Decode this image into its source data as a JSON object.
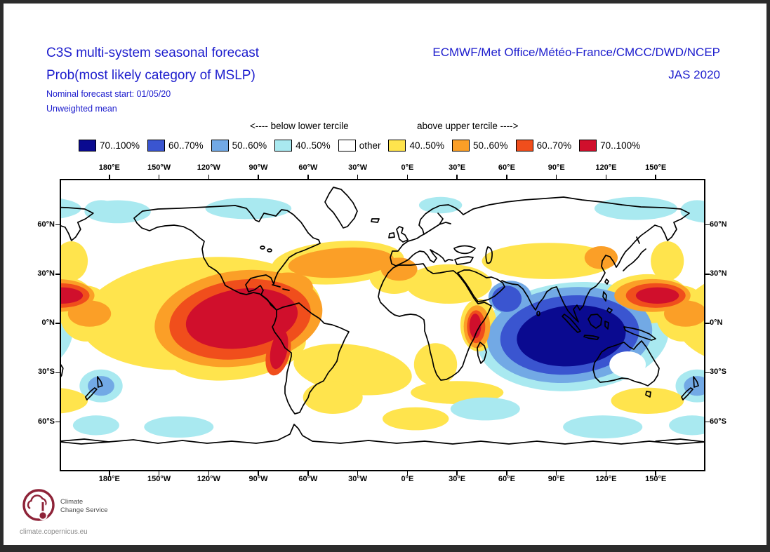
{
  "header": {
    "title_line1": "C3S multi-system seasonal forecast",
    "title_line2": "Prob(most likely category of MSLP)",
    "subtitle_line1": "Nominal forecast start: 01/05/20",
    "subtitle_line2": "Unweighted mean",
    "orgs": "ECMWF/Met Office/Météo-France/CMCC/DWD/NCEP",
    "season": "JAS 2020"
  },
  "legend": {
    "below_label": "<---- below lower tercile",
    "above_label": "above upper tercile ---->",
    "entries": [
      {
        "label": "70..100%",
        "color": "#0a0a90",
        "side": "below"
      },
      {
        "label": "60..70%",
        "color": "#3a55d0",
        "side": "below"
      },
      {
        "label": "50..60%",
        "color": "#72a9e5",
        "side": "below"
      },
      {
        "label": "40..50%",
        "color": "#a9e9f0",
        "side": "below"
      },
      {
        "label": "other",
        "color": "#ffffff",
        "side": "other"
      },
      {
        "label": "40..50%",
        "color": "#ffe44d",
        "side": "above"
      },
      {
        "label": "50..60%",
        "color": "#fb9f27",
        "side": "above"
      },
      {
        "label": "60..70%",
        "color": "#f04e1c",
        "side": "above"
      },
      {
        "label": "70..100%",
        "color": "#d00f2c",
        "side": "above"
      }
    ]
  },
  "map": {
    "lon_ticks": [
      "180°E",
      "150°W",
      "120°W",
      "90°W",
      "60°W",
      "30°W",
      "0°E",
      "30°E",
      "60°E",
      "90°E",
      "120°E",
      "150°E"
    ],
    "lat_ticks": [
      "60°N",
      "30°N",
      "0°N",
      "30°S",
      "60°S"
    ]
  },
  "footer": {
    "logo_line1": "Climate",
    "logo_line2": "Change Service",
    "url": "climate.copernicus.eu"
  },
  "chart_data": {
    "type": "heatmap",
    "title": "Prob(most likely category of MSLP)",
    "subtitle": "C3S multi-system seasonal forecast, JAS 2020, start 01/05/20, unweighted mean",
    "units": "%",
    "projection": "equirectangular",
    "lon_tick_values": [
      180,
      -150,
      -120,
      -90,
      -60,
      -30,
      0,
      30,
      60,
      90,
      120,
      150
    ],
    "lat_tick_values": [
      60,
      30,
      0,
      -30,
      -60
    ],
    "legend_note": "blue shades = probability MSLP below lower tercile; warm shades = probability above upper tercile",
    "palette": {
      "navy": "#0a0a90",
      "blue": "#3a55d0",
      "lightblue": "#72a9e5",
      "cyan": "#a9e9f0",
      "white": "#ffffff",
      "yellow": "#ffe44d",
      "orange": "#fb9f27",
      "orangered": "#f04e1c",
      "red": "#d00f2c"
    },
    "regions": [
      {
        "name": "indian-ocean-cool-fringe",
        "color": "cyan",
        "lon": 100,
        "lat": -8,
        "rx": 58,
        "ry": 33,
        "rot": -5
      },
      {
        "name": "tasman-nz-cool",
        "color": "cyan",
        "lon": 175,
        "lat": -38,
        "rx": 13,
        "ry": 10,
        "rot": 0
      },
      {
        "name": "pacific-warm-broad",
        "color": "yellow",
        "lon": -125,
        "lat": 6,
        "rx": 73,
        "ry": 34,
        "rot": -5
      },
      {
        "name": "se-pacific-warm",
        "color": "yellow",
        "lon": -103,
        "lat": -16,
        "rx": 42,
        "ry": 18,
        "rot": -8
      },
      {
        "name": "wpac-equator-warm",
        "color": "yellow",
        "lon": 166,
        "lat": 6,
        "rx": 16,
        "ry": 17,
        "rot": 0
      },
      {
        "name": "wpac-north-warm",
        "color": "yellow",
        "lon": 157,
        "lat": 38,
        "rx": 10,
        "ry": 12,
        "rot": 0
      },
      {
        "name": "north-atlantic-warm",
        "color": "yellow",
        "lon": -42,
        "lat": 37,
        "rx": 40,
        "ry": 13,
        "rot": -4
      },
      {
        "name": "iberia-nw-africa-warm",
        "color": "yellow",
        "lon": -8,
        "lat": 29,
        "rx": 15,
        "ry": 11,
        "rot": 0
      },
      {
        "name": "south-atlantic-warm",
        "color": "yellow",
        "lon": -33,
        "lat": -28,
        "rx": 36,
        "ry": 15,
        "rot": 8
      },
      {
        "name": "southern-africa-warm",
        "color": "yellow",
        "lon": 17,
        "lat": -25,
        "rx": 13,
        "ry": 13,
        "rot": 0
      },
      {
        "name": "middle-east-warm",
        "color": "yellow",
        "lon": 25,
        "lat": 24,
        "rx": 26,
        "ry": 12,
        "rot": 0
      },
      {
        "name": "central-asia-warm",
        "color": "yellow",
        "lon": 85,
        "lat": 38,
        "rx": 40,
        "ry": 11,
        "rot": 0
      },
      {
        "name": "wpac-subtropics-warm",
        "color": "yellow",
        "lon": 145,
        "lat": 15,
        "rx": 26,
        "ry": 15,
        "rot": 0
      },
      {
        "name": "southern-ocean-atl-warm",
        "color": "yellow",
        "lon": 5,
        "lat": -58,
        "rx": 20,
        "ry": 7,
        "rot": 0
      },
      {
        "name": "south-indian-warm",
        "color": "yellow",
        "lon": 30,
        "lat": -42,
        "rx": 28,
        "ry": 7,
        "rot": 0
      },
      {
        "name": "south-australia-warm",
        "color": "yellow",
        "lon": 145,
        "lat": -47,
        "rx": 22,
        "ry": 8,
        "rot": 0
      },
      {
        "name": "se-samerica-warm",
        "color": "yellow",
        "lon": -45,
        "lat": -45,
        "rx": 18,
        "ry": 10,
        "rot": 0
      },
      {
        "name": "horn-africa-warm-fringe",
        "color": "yellow",
        "lon": 43,
        "lat": -1,
        "rx": 11,
        "ry": 16,
        "rot": 0
      },
      {
        "name": "indian-ocean-cool-outer",
        "color": "lightblue",
        "lon": 98,
        "lat": -7,
        "rx": 50,
        "ry": 29,
        "rot": -5
      },
      {
        "name": "arabian-sea-cool-outer",
        "color": "lightblue",
        "lon": 62,
        "lat": 16,
        "rx": 13,
        "ry": 10,
        "rot": 0
      },
      {
        "name": "nz-cool-core",
        "color": "lightblue",
        "lon": 175,
        "lat": -38,
        "rx": 8,
        "ry": 6,
        "rot": 0
      },
      {
        "name": "east-pacific-warm-mid",
        "color": "orange",
        "lon": -102,
        "lat": 3,
        "rx": 51,
        "ry": 29,
        "rot": -8
      },
      {
        "name": "north-atlantic-warm-mid",
        "color": "orange",
        "lon": -40,
        "lat": 37,
        "rx": 32,
        "ry": 9,
        "rot": -4
      },
      {
        "name": "caribbean-warm-mid",
        "color": "orange",
        "lon": -72,
        "lat": 22,
        "rx": 15,
        "ry": 9,
        "rot": 0
      },
      {
        "name": "morocco-warm-mid",
        "color": "orange",
        "lon": -5,
        "lat": 33,
        "rx": 11,
        "ry": 7,
        "rot": 0
      },
      {
        "name": "horn-africa-warm-mid",
        "color": "orange",
        "lon": 42,
        "lat": -2,
        "rx": 8,
        "ry": 13,
        "rot": 0
      },
      {
        "name": "ne-china-warm-mid",
        "color": "orange",
        "lon": 117,
        "lat": 40,
        "rx": 10,
        "ry": 7,
        "rot": 0
      },
      {
        "name": "wpac-warm-mid",
        "color": "orange",
        "lon": 148,
        "lat": 17,
        "rx": 23,
        "ry": 10,
        "rot": 0
      },
      {
        "name": "wpac-equator-warm-mid",
        "color": "orange",
        "lon": 168,
        "lat": 6,
        "rx": 13,
        "ry": 8,
        "rot": 0
      },
      {
        "name": "indian-ocean-cool-mid",
        "color": "blue",
        "lon": 98,
        "lat": -7,
        "rx": 42,
        "ry": 24,
        "rot": -5
      },
      {
        "name": "arabian-sea-cool-mid",
        "color": "blue",
        "lon": 60,
        "lat": 15,
        "rx": 9,
        "ry": 8,
        "rot": 0
      },
      {
        "name": "east-pacific-warm-high",
        "color": "orangered",
        "lon": -101,
        "lat": 2.5,
        "rx": 43,
        "ry": 24,
        "rot": -8
      },
      {
        "name": "peru-coast-warm-high",
        "color": "orangered",
        "lon": -78,
        "lat": -18,
        "rx": 7,
        "ry": 14,
        "rot": 15
      },
      {
        "name": "wpac-warm-high",
        "color": "orangered",
        "lon": 150,
        "lat": 17,
        "rx": 18,
        "ry": 7.5,
        "rot": 0
      },
      {
        "name": "horn-africa-warm-high",
        "color": "orangered",
        "lon": 41.5,
        "lat": -2,
        "rx": 5.5,
        "ry": 10,
        "rot": 0
      },
      {
        "name": "indian-ocean-cool-core",
        "color": "navy",
        "lon": 99,
        "lat": -7.5,
        "rx": 33,
        "ry": 18.5,
        "rot": -5
      },
      {
        "name": "east-pacific-warm-core",
        "color": "red",
        "lon": -100,
        "lat": 3,
        "rx": 34,
        "ry": 18,
        "rot": -8
      },
      {
        "name": "peru-coast-warm-core",
        "color": "red",
        "lon": -77.5,
        "lat": -16,
        "rx": 5,
        "ry": 12,
        "rot": 12
      },
      {
        "name": "wpac-warm-core",
        "color": "red",
        "lon": 151,
        "lat": 17,
        "rx": 13,
        "ry": 5,
        "rot": 0
      },
      {
        "name": "horn-africa-warm-core",
        "color": "red",
        "lon": 41,
        "lat": -1.5,
        "rx": 3.5,
        "ry": 7.5,
        "rot": 0
      },
      {
        "name": "bering-cool",
        "color": "cyan",
        "lon": -175,
        "lat": 68,
        "rx": 20,
        "ry": 7,
        "rot": 0
      },
      {
        "name": "arctic-canada-cool",
        "color": "cyan",
        "lon": -96,
        "lat": 70,
        "rx": 26,
        "ry": 6.5,
        "rot": 0
      },
      {
        "name": "east-siberia-cool",
        "color": "cyan",
        "lon": 138,
        "lat": 70,
        "rx": 25,
        "ry": 7,
        "rot": 0
      },
      {
        "name": "chukotka-cool",
        "color": "cyan",
        "lon": 175,
        "lat": 69,
        "rx": 10,
        "ry": 6,
        "rot": 0
      },
      {
        "name": "scandinavia-cool",
        "color": "cyan",
        "lon": 20,
        "lat": 72,
        "rx": 13,
        "ry": 5,
        "rot": 0
      },
      {
        "name": "south-pacific-cool",
        "color": "cyan",
        "lon": -138,
        "lat": -63,
        "rx": 21,
        "ry": 6.5,
        "rot": 0
      },
      {
        "name": "south-indian-cool",
        "color": "cyan",
        "lon": 47,
        "lat": -52,
        "rx": 21,
        "ry": 7,
        "rot": 0
      },
      {
        "name": "south-australia-cool",
        "color": "cyan",
        "lon": 118,
        "lat": -63,
        "rx": 24,
        "ry": 7,
        "rot": 0
      },
      {
        "name": "ross-sea-cool",
        "color": "cyan",
        "lon": 172,
        "lat": -62,
        "rx": 14,
        "ry": 6,
        "rot": 0
      },
      {
        "name": "australia-neutral",
        "color": "white",
        "lon": 133,
        "lat": -25,
        "rx": 11,
        "ry": 8,
        "rot": 0
      }
    ]
  }
}
